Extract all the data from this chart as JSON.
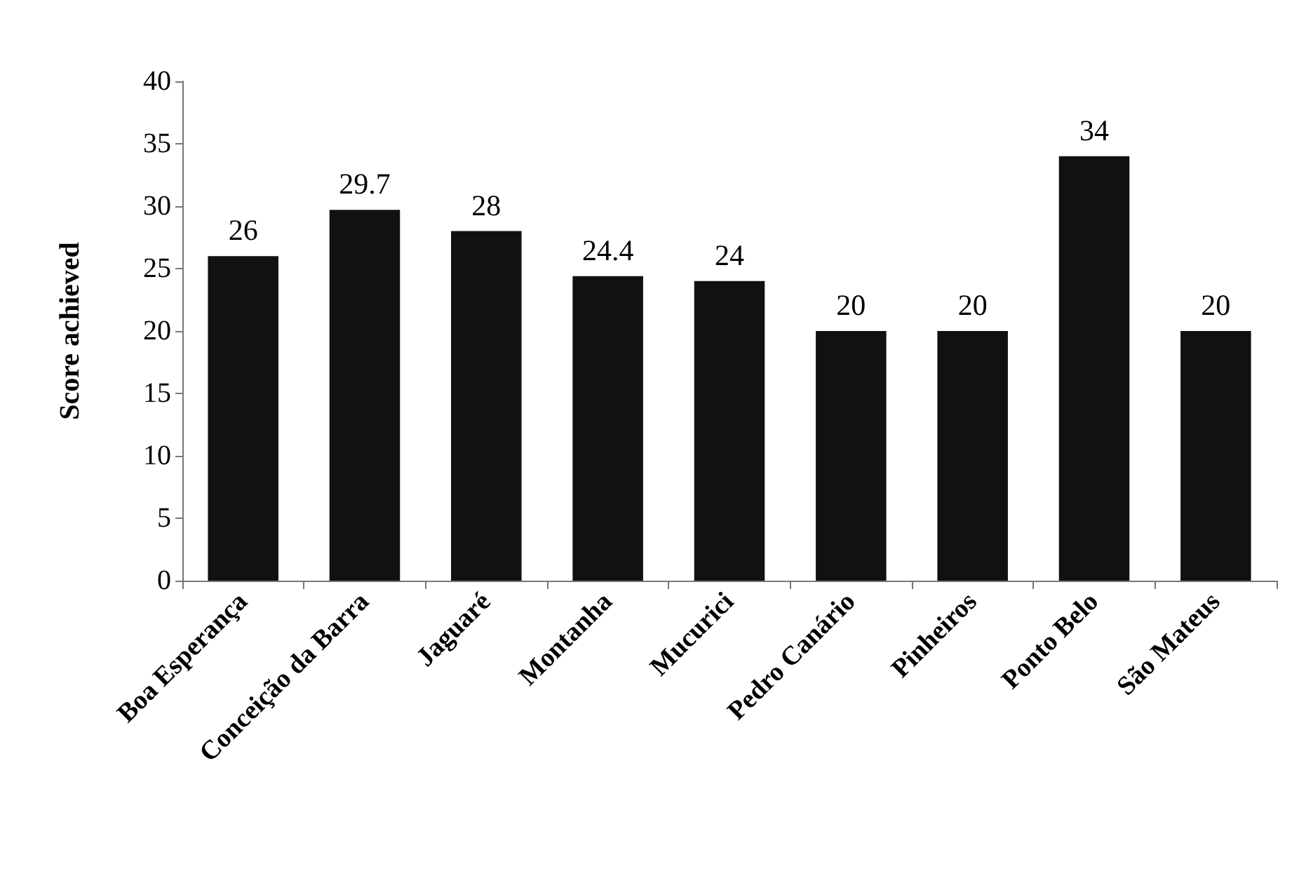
{
  "chart_data": {
    "type": "bar",
    "ylabel": "Score achieved",
    "categories": [
      "Boa Esperança",
      "Conceição da Barra",
      "Jaguaré",
      "Montanha",
      "Mucurici",
      "Pedro Canário",
      "Pinheiros",
      "Ponto Belo",
      "São Mateus"
    ],
    "values": [
      26,
      29.7,
      28,
      24.4,
      24,
      20,
      20,
      34,
      20
    ],
    "color": "#111111",
    "ylim": [
      0,
      40
    ],
    "yticks": [
      0,
      5,
      10,
      15,
      20,
      25,
      30,
      35,
      40
    ],
    "data_labels": true
  }
}
